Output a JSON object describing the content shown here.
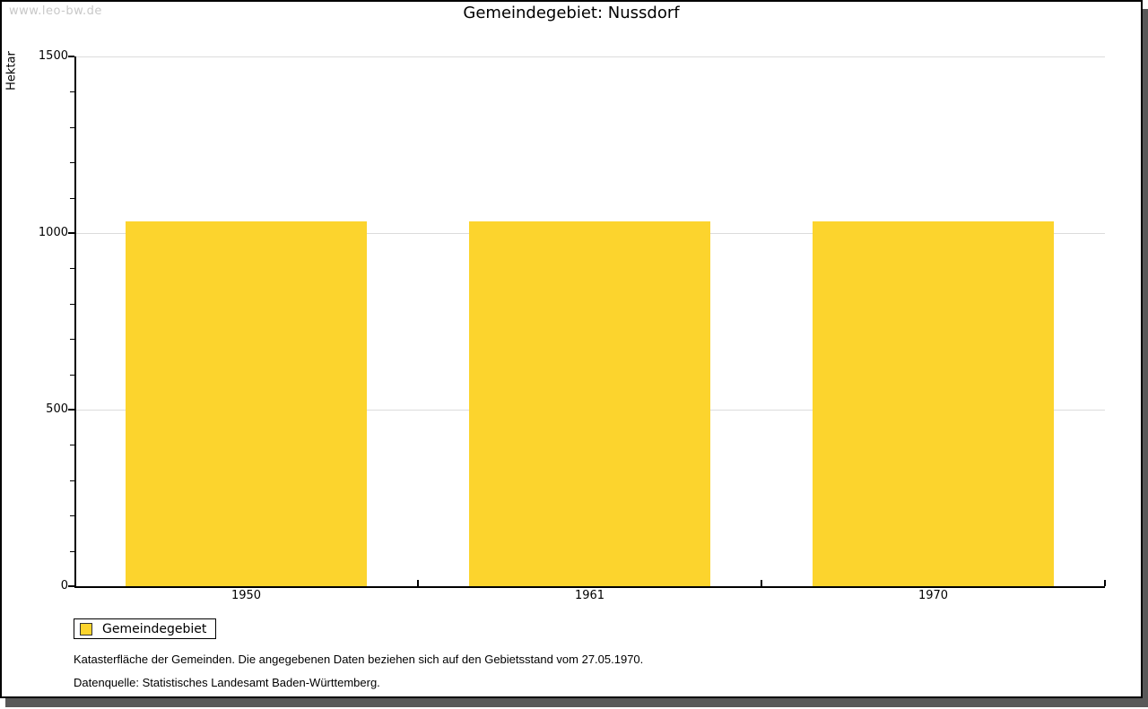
{
  "watermark": "www.leo-bw.de",
  "header": {
    "title": "Gemeindegebiet: Nussdorf"
  },
  "chart_data": {
    "type": "bar",
    "title": "Gemeindegebiet: Nussdorf",
    "ylabel": "Hektar",
    "xlabel": "",
    "ylim": [
      0,
      1500
    ],
    "yticks_major": [
      0,
      500,
      1000,
      1500
    ],
    "ytick_minor_step": 100,
    "grid": true,
    "categories": [
      "1950",
      "1961",
      "1970"
    ],
    "series": [
      {
        "name": "Gemeindegebiet",
        "color": "#fcd42d",
        "values": [
          1034,
          1034,
          1034
        ]
      }
    ],
    "legend_position": "bottom-left"
  },
  "footnotes": {
    "line1": "Katasterfläche der Gemeinden. Die angegebenen Daten beziehen sich auf den Gebietsstand vom 27.05.1970.",
    "line2": "Datenquelle: Statistisches Landesamt Baden-Württemberg."
  },
  "colors": {
    "bar": "#fcd42d",
    "grid": "#dcdcdc",
    "axis": "#000000",
    "text": "#000000",
    "watermark": "#c8c8c8",
    "swatch_border": "#333333",
    "shadow": "#595959",
    "card_border": "#000000"
  }
}
